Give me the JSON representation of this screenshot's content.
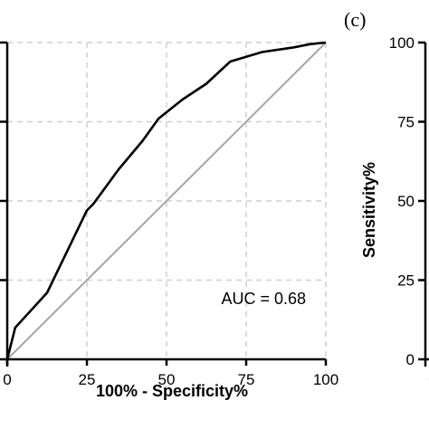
{
  "chart_data": [
    {
      "type": "line",
      "title": "",
      "xlabel": "100% - Specificity%",
      "ylabel": "",
      "xlim": [
        0,
        100
      ],
      "ylim": [
        0,
        100
      ],
      "x_ticks": [
        "0",
        "25",
        "50",
        "75",
        "100"
      ],
      "y_ticks": [
        "",
        "",
        "",
        "",
        ""
      ],
      "grid": true,
      "annotation": "AUC = 0.68",
      "series": [
        {
          "name": "",
          "color": "#000000",
          "x": [
            0,
            2.5,
            12.5,
            25,
            27,
            35,
            42.5,
            47.5,
            55,
            62.5,
            70,
            80,
            90,
            95,
            100
          ],
          "y": [
            0,
            10,
            21,
            47,
            49,
            60,
            69,
            76,
            82,
            87,
            94,
            97,
            98.5,
            99.5,
            100
          ]
        },
        {
          "name": "",
          "color": "#a6a6a6",
          "x": [
            0,
            100
          ],
          "y": [
            0,
            100
          ]
        }
      ]
    },
    {
      "type": "line",
      "panel_label": "(c)",
      "ylabel": "Sensitivity%",
      "ylim": [
        0,
        100
      ],
      "y_ticks": [
        "0",
        "25",
        "50",
        "75",
        "100"
      ],
      "x_ticks": [
        "0"
      ],
      "series": []
    }
  ],
  "colors": {
    "grid": "#cfcfcf",
    "reference": "#a6a6a6",
    "curve": "#000000"
  }
}
